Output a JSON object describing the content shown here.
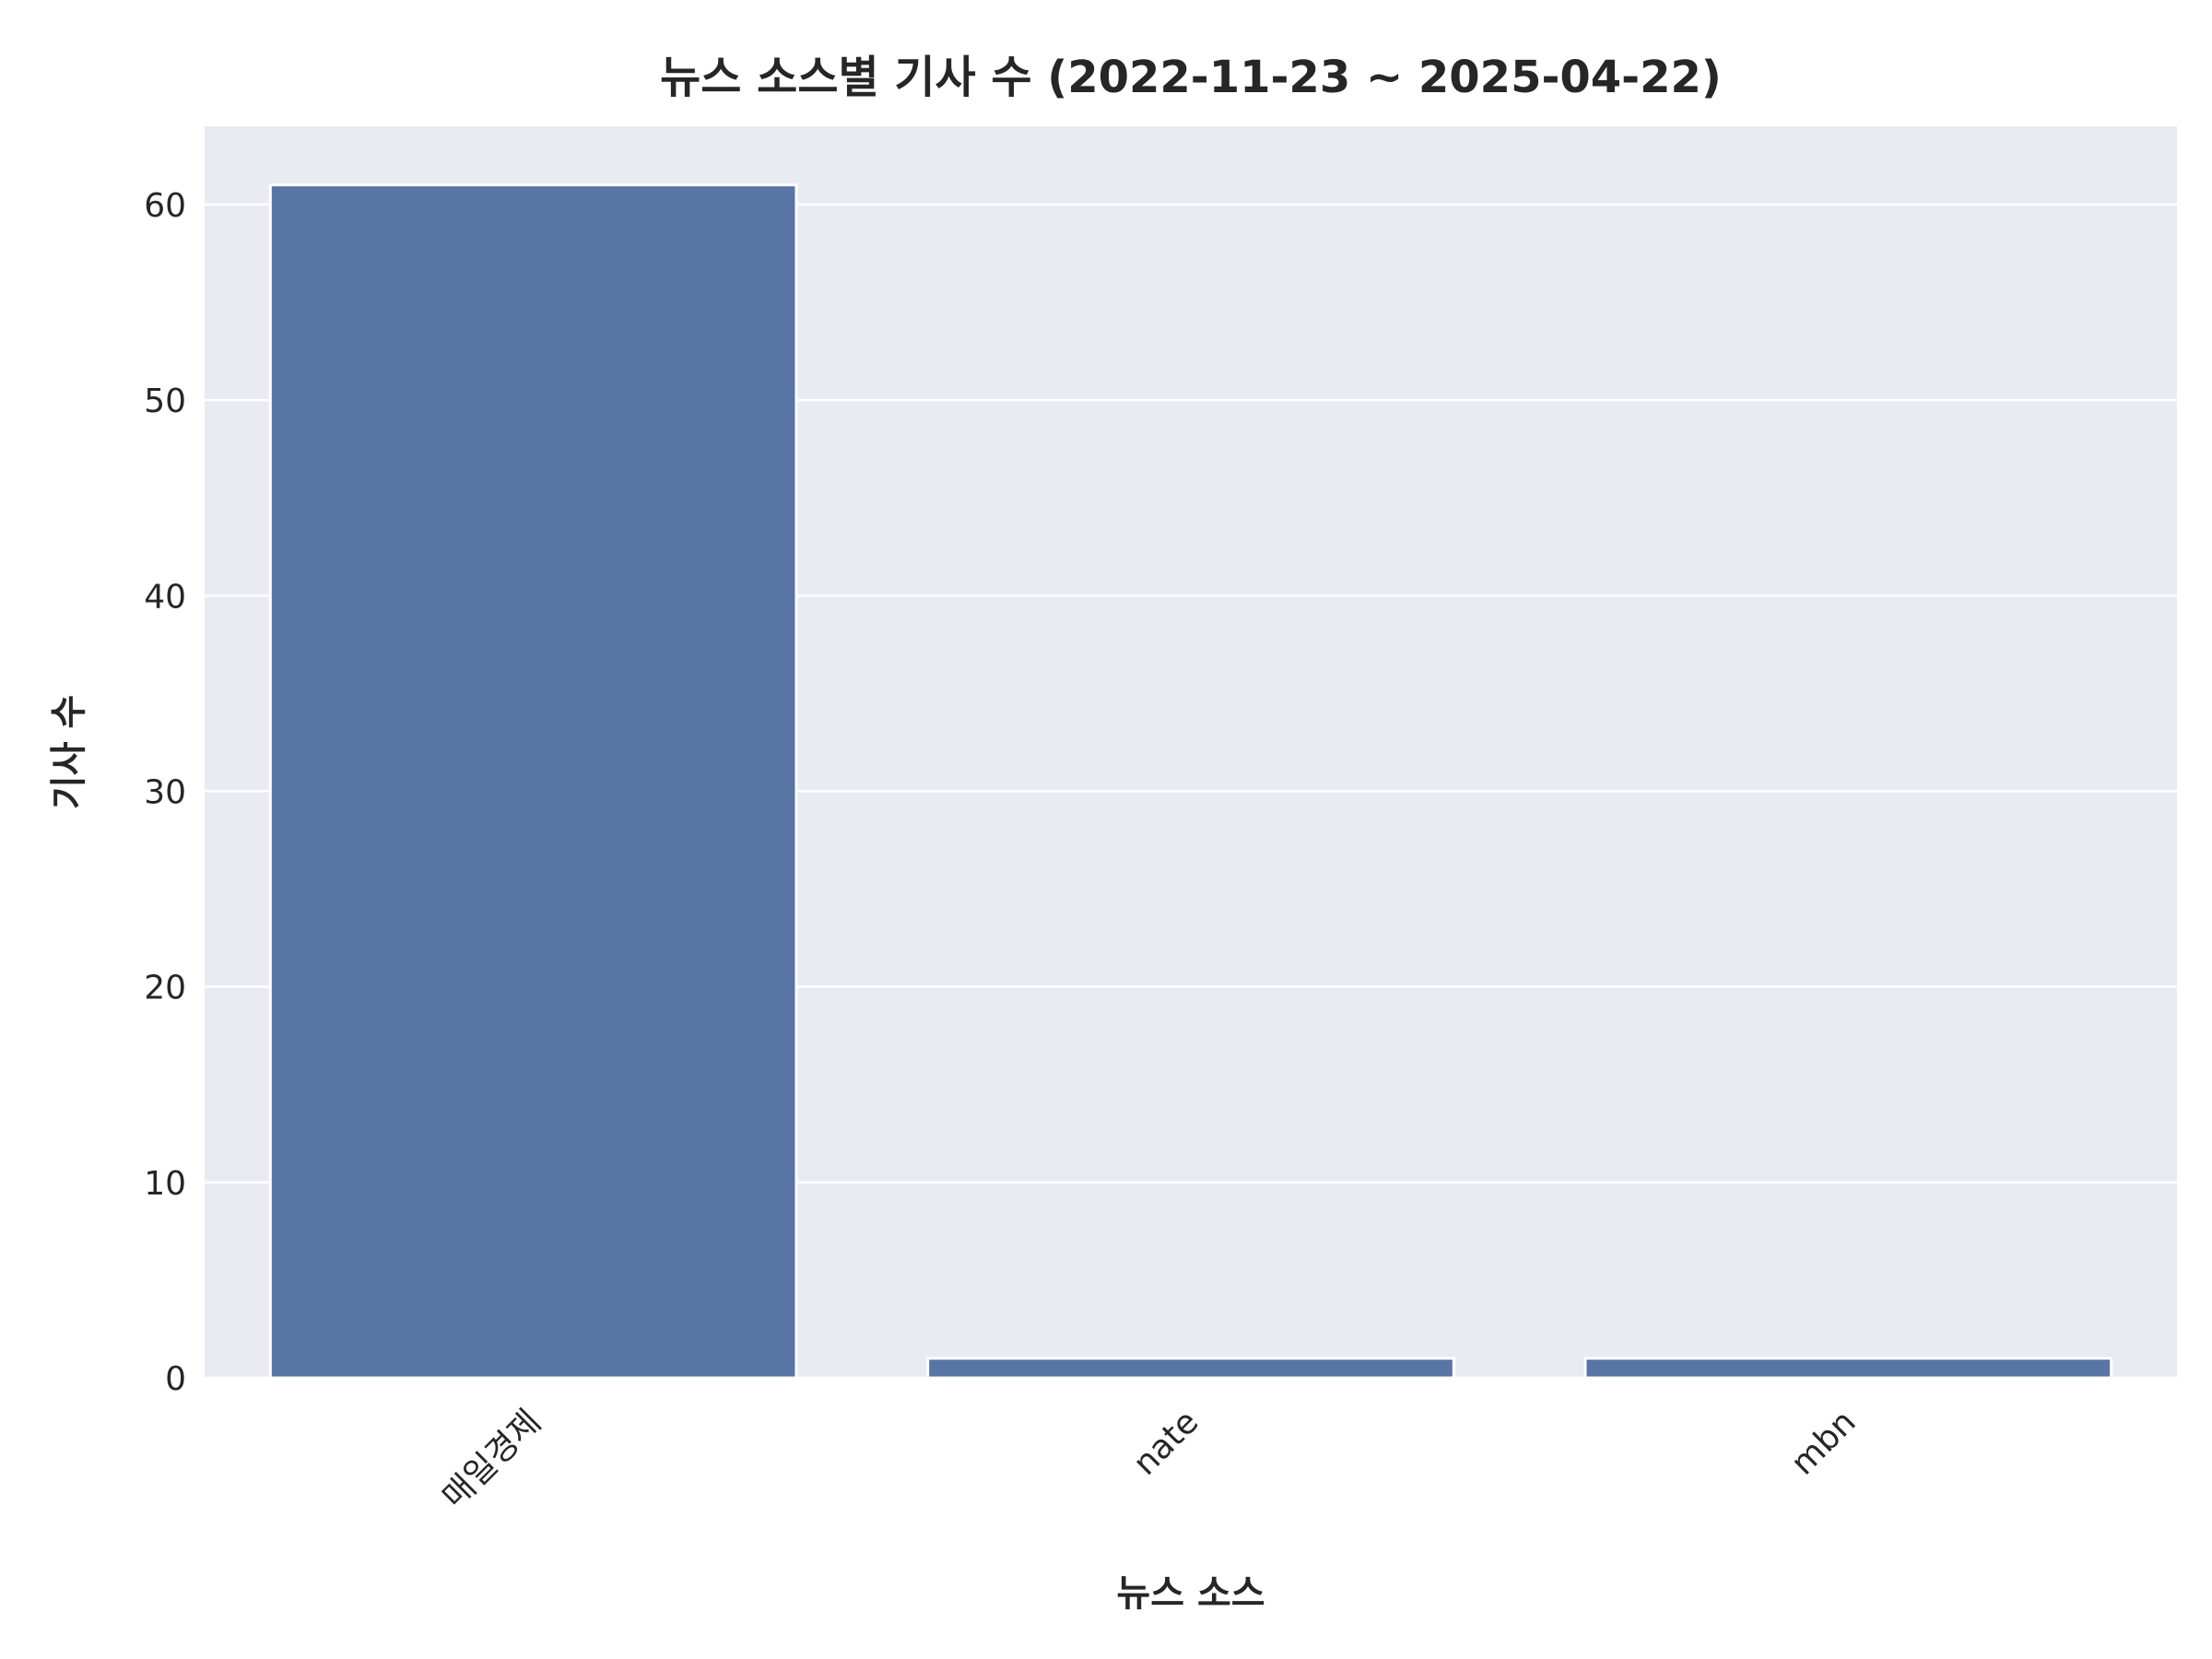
{
  "chart_data": {
    "type": "bar",
    "title": "뉴스 소스별 기사 수 (2022-11-23 ~ 2025-04-22)",
    "xlabel": "뉴스 소스",
    "ylabel": "기사 수",
    "categories": [
      "매일경제",
      "nate",
      "mbn"
    ],
    "values": [
      61,
      1,
      1
    ],
    "ylim": [
      0,
      64
    ],
    "yticks": [
      0,
      10,
      20,
      30,
      40,
      50,
      60
    ],
    "grid": true,
    "bar_color": "#5975a4",
    "background_color": "#eaeaf2",
    "grid_color": "#ffffff"
  }
}
